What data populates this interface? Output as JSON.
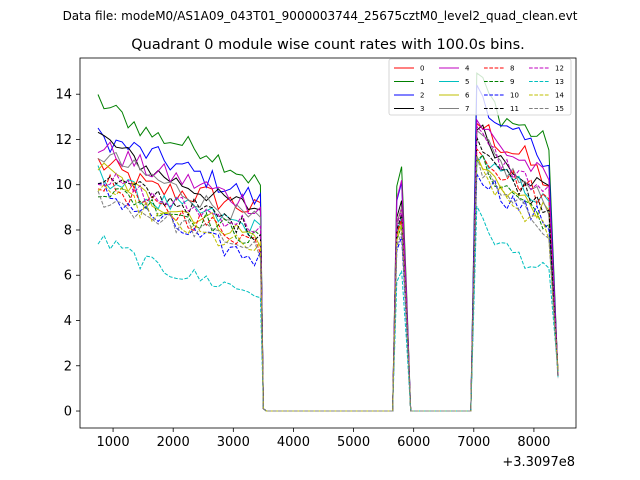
{
  "suptitle": "Data file: modeM0/AS1A09_043T01_9000003744_25675cztM0_level2_quad_clean.evt",
  "chart_data": {
    "type": "line",
    "title": "Quadrant 0 module wise count rates with 100.0s bins.",
    "xlabel": "",
    "ylabel": "",
    "x_offset_label": "+3.3097e8",
    "xlim": [
      450,
      8700
    ],
    "ylim": [
      -0.75,
      15.6
    ],
    "xticks": [
      1000,
      2000,
      3000,
      4000,
      5000,
      6000,
      7000,
      8000
    ],
    "yticks": [
      0,
      2,
      4,
      6,
      8,
      10,
      12,
      14
    ],
    "legend_position": "upper right",
    "segments": [
      {
        "start": 750,
        "end": 3450
      },
      {
        "start": 5650,
        "end": 5950
      },
      {
        "start": 6950,
        "end": 8350
      }
    ],
    "series": [
      {
        "name": "0",
        "color": "#ff0000",
        "dash": "solid",
        "seg_start": [
          11.0,
          9.8,
          9.5,
          8.8
        ],
        "seg_mid_peak": 9.0,
        "seg_end": [
          12.8,
          11.8,
          11.2,
          10.0
        ],
        "noise": 0.55
      },
      {
        "name": "1",
        "color": "#008000",
        "dash": "solid",
        "seg_start": [
          13.7,
          12.2,
          11.5,
          10.0
        ],
        "seg_mid_peak": 10.8,
        "seg_end": [
          14.9,
          13.0,
          12.5,
          11.8
        ],
        "noise": 0.45
      },
      {
        "name": "2",
        "color": "#0000ff",
        "dash": "solid",
        "seg_start": [
          12.1,
          11.3,
          10.3,
          9.3
        ],
        "seg_mid_peak": 10.1,
        "seg_end": [
          14.5,
          12.4,
          11.9,
          11.1
        ],
        "noise": 0.5
      },
      {
        "name": "3",
        "color": "#000000",
        "dash": "solid",
        "seg_start": [
          12.2,
          10.6,
          9.6,
          8.9
        ],
        "seg_mid_peak": 9.3,
        "seg_end": [
          12.7,
          11.2,
          10.4,
          9.8
        ],
        "noise": 0.4
      },
      {
        "name": "4",
        "color": "#bf00bf",
        "dash": "solid",
        "seg_start": [
          11.7,
          10.6,
          9.9,
          9.0
        ],
        "seg_mid_peak": 10.2,
        "seg_end": [
          12.9,
          11.6,
          11.0,
          10.1
        ],
        "noise": 0.5
      },
      {
        "name": "5",
        "color": "#00bfbf",
        "dash": "solid",
        "seg_start": [
          10.5,
          9.3,
          8.7,
          8.0
        ],
        "seg_mid_peak": 8.6,
        "seg_end": [
          11.4,
          10.4,
          9.9,
          9.0
        ],
        "noise": 0.45
      },
      {
        "name": "6",
        "color": "#bfbf00",
        "dash": "solid",
        "seg_start": [
          10.8,
          9.3,
          8.5,
          7.6
        ],
        "seg_mid_peak": 8.4,
        "seg_end": [
          11.0,
          10.0,
          9.3,
          8.6
        ],
        "noise": 0.45
      },
      {
        "name": "7",
        "color": "#808080",
        "dash": "solid",
        "seg_start": [
          11.4,
          10.3,
          9.2,
          8.3
        ],
        "seg_mid_peak": 9.0,
        "seg_end": [
          12.2,
          10.9,
          10.0,
          9.1
        ],
        "noise": 0.45
      },
      {
        "name": "8",
        "color": "#ff0000",
        "dash": "dashed",
        "seg_start": [
          10.2,
          9.0,
          8.3,
          7.4
        ],
        "seg_mid_peak": 8.5,
        "seg_end": [
          11.8,
          10.6,
          10.0,
          9.2
        ],
        "noise": 0.5
      },
      {
        "name": "9",
        "color": "#008000",
        "dash": "dashed",
        "seg_start": [
          9.9,
          9.1,
          8.4,
          7.5
        ],
        "seg_mid_peak": 8.2,
        "seg_end": [
          11.2,
          10.0,
          9.3,
          8.2
        ],
        "noise": 0.45
      },
      {
        "name": "10",
        "color": "#0000ff",
        "dash": "dashed",
        "seg_start": [
          9.8,
          8.6,
          7.5,
          6.7
        ],
        "seg_mid_peak": 7.7,
        "seg_end": [
          10.7,
          9.6,
          8.9,
          8.3
        ],
        "noise": 0.5
      },
      {
        "name": "11",
        "color": "#000000",
        "dash": "dashed",
        "seg_start": [
          10.3,
          9.6,
          8.8,
          7.9
        ],
        "seg_mid_peak": 8.7,
        "seg_end": [
          12.2,
          10.6,
          9.8,
          9.0
        ],
        "noise": 0.45
      },
      {
        "name": "12",
        "color": "#bf00bf",
        "dash": "dashed",
        "seg_start": [
          10.4,
          9.4,
          8.8,
          8.1
        ],
        "seg_mid_peak": 8.9,
        "seg_end": [
          12.3,
          11.0,
          10.3,
          9.6
        ],
        "noise": 0.45
      },
      {
        "name": "13",
        "color": "#00bfbf",
        "dash": "dashed",
        "seg_start": [
          7.6,
          6.4,
          5.8,
          5.2
        ],
        "seg_mid_peak": 6.2,
        "seg_end": [
          8.7,
          7.3,
          6.7,
          6.0
        ],
        "noise": 0.4
      },
      {
        "name": "14",
        "color": "#bfbf00",
        "dash": "dashed",
        "seg_start": [
          10.0,
          8.7,
          7.7,
          7.1
        ],
        "seg_mid_peak": 8.2,
        "seg_end": [
          10.8,
          9.5,
          8.7,
          7.8
        ],
        "noise": 0.45
      },
      {
        "name": "15",
        "color": "#808080",
        "dash": "dashed",
        "seg_start": [
          9.5,
          8.6,
          7.9,
          7.1
        ],
        "seg_mid_peak": 7.9,
        "seg_end": [
          10.9,
          9.5,
          8.8,
          8.0
        ],
        "noise": 0.45
      }
    ]
  }
}
